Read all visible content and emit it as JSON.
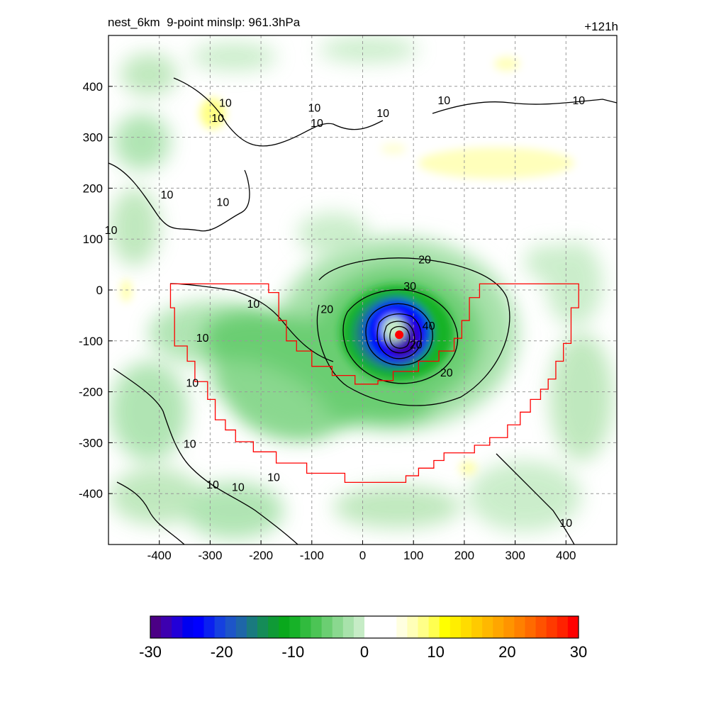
{
  "header": {
    "left_title": "nest_6km  9-point minslp: 961.3hPa",
    "right_title": "+121h"
  },
  "chart_data": {
    "type": "heatmap",
    "title": "nest_6km  9-point minslp: 961.3hPa",
    "forecast_hour_label": "+121h",
    "xlim": [
      -500,
      500
    ],
    "ylim": [
      -500,
      500
    ],
    "x_ticks": [
      -400,
      -300,
      -200,
      -100,
      0,
      100,
      200,
      300,
      400
    ],
    "y_ticks": [
      400,
      300,
      200,
      100,
      0,
      -100,
      -200,
      -300,
      -400
    ],
    "x_tick_labels": [
      "-400",
      "-300",
      "-200",
      "-100",
      "0",
      "100",
      "200",
      "300",
      "400"
    ],
    "y_tick_labels": [
      "400",
      "300",
      "200",
      "100",
      "0",
      "-100",
      "-200",
      "-300",
      "-400"
    ],
    "grid": true,
    "storm_center": {
      "x": 72,
      "y": -88
    },
    "contour_labels": [
      {
        "text": "10",
        "x": -270,
        "y": 360
      },
      {
        "text": "10",
        "x": -285,
        "y": 330
      },
      {
        "text": "10",
        "x": -95,
        "y": 350
      },
      {
        "text": "10",
        "x": -90,
        "y": 320
      },
      {
        "text": "10",
        "x": 40,
        "y": 340
      },
      {
        "text": "10",
        "x": 160,
        "y": 365
      },
      {
        "text": "10",
        "x": 425,
        "y": 365
      },
      {
        "text": "10",
        "x": -385,
        "y": 180
      },
      {
        "text": "10",
        "x": -275,
        "y": 165
      },
      {
        "text": "10",
        "x": -495,
        "y": 110
      },
      {
        "text": "10",
        "x": -215,
        "y": -35
      },
      {
        "text": "10",
        "x": -315,
        "y": -102
      },
      {
        "text": "10",
        "x": -335,
        "y": -190
      },
      {
        "text": "10",
        "x": -340,
        "y": -310
      },
      {
        "text": "10",
        "x": -295,
        "y": -390
      },
      {
        "text": "10",
        "x": -245,
        "y": -395
      },
      {
        "text": "10",
        "x": -175,
        "y": -375
      },
      {
        "text": "10",
        "x": 400,
        "y": -465
      },
      {
        "text": "20",
        "x": 122,
        "y": 52
      },
      {
        "text": "20",
        "x": -70,
        "y": -45
      },
      {
        "text": "20",
        "x": 165,
        "y": -170
      },
      {
        "text": "30",
        "x": 93,
        "y": 0
      },
      {
        "text": "40",
        "x": 130,
        "y": -78
      },
      {
        "text": "20",
        "x": 105,
        "y": -115
      }
    ],
    "colorbar": {
      "range": [
        -30,
        30
      ],
      "tick_values": [
        -30,
        -20,
        -10,
        0,
        10,
        20,
        30
      ],
      "tick_labels": [
        "-30",
        "-20",
        "-10",
        "0",
        "10",
        "20",
        "30"
      ],
      "colors": [
        "#4b0085",
        "#3d00b0",
        "#2200d8",
        "#0000f0",
        "#0000ff",
        "#0a20f0",
        "#1540e0",
        "#1d55c8",
        "#1e66a8",
        "#1a7a7f",
        "#158c58",
        "#0f9a36",
        "#09a81c",
        "#17b228",
        "#31bb3e",
        "#4cc455",
        "#6bce72",
        "#8ad88f",
        "#a8e2ab",
        "#c6ecc6",
        "#ffffff",
        "#ffffff",
        "#ffffff",
        "#ffffe0",
        "#ffffb8",
        "#ffff88",
        "#ffff50",
        "#ffff00",
        "#ffee00",
        "#ffdc00",
        "#ffca00",
        "#ffb800",
        "#ffa600",
        "#ff9400",
        "#ff8000",
        "#ff6a00",
        "#ff5200",
        "#ff3a00",
        "#ff2200",
        "#ff0000"
      ]
    },
    "colors": {
      "boundary": "#ff0000",
      "center_marker": "#ff0000",
      "contour": "#000000"
    }
  }
}
